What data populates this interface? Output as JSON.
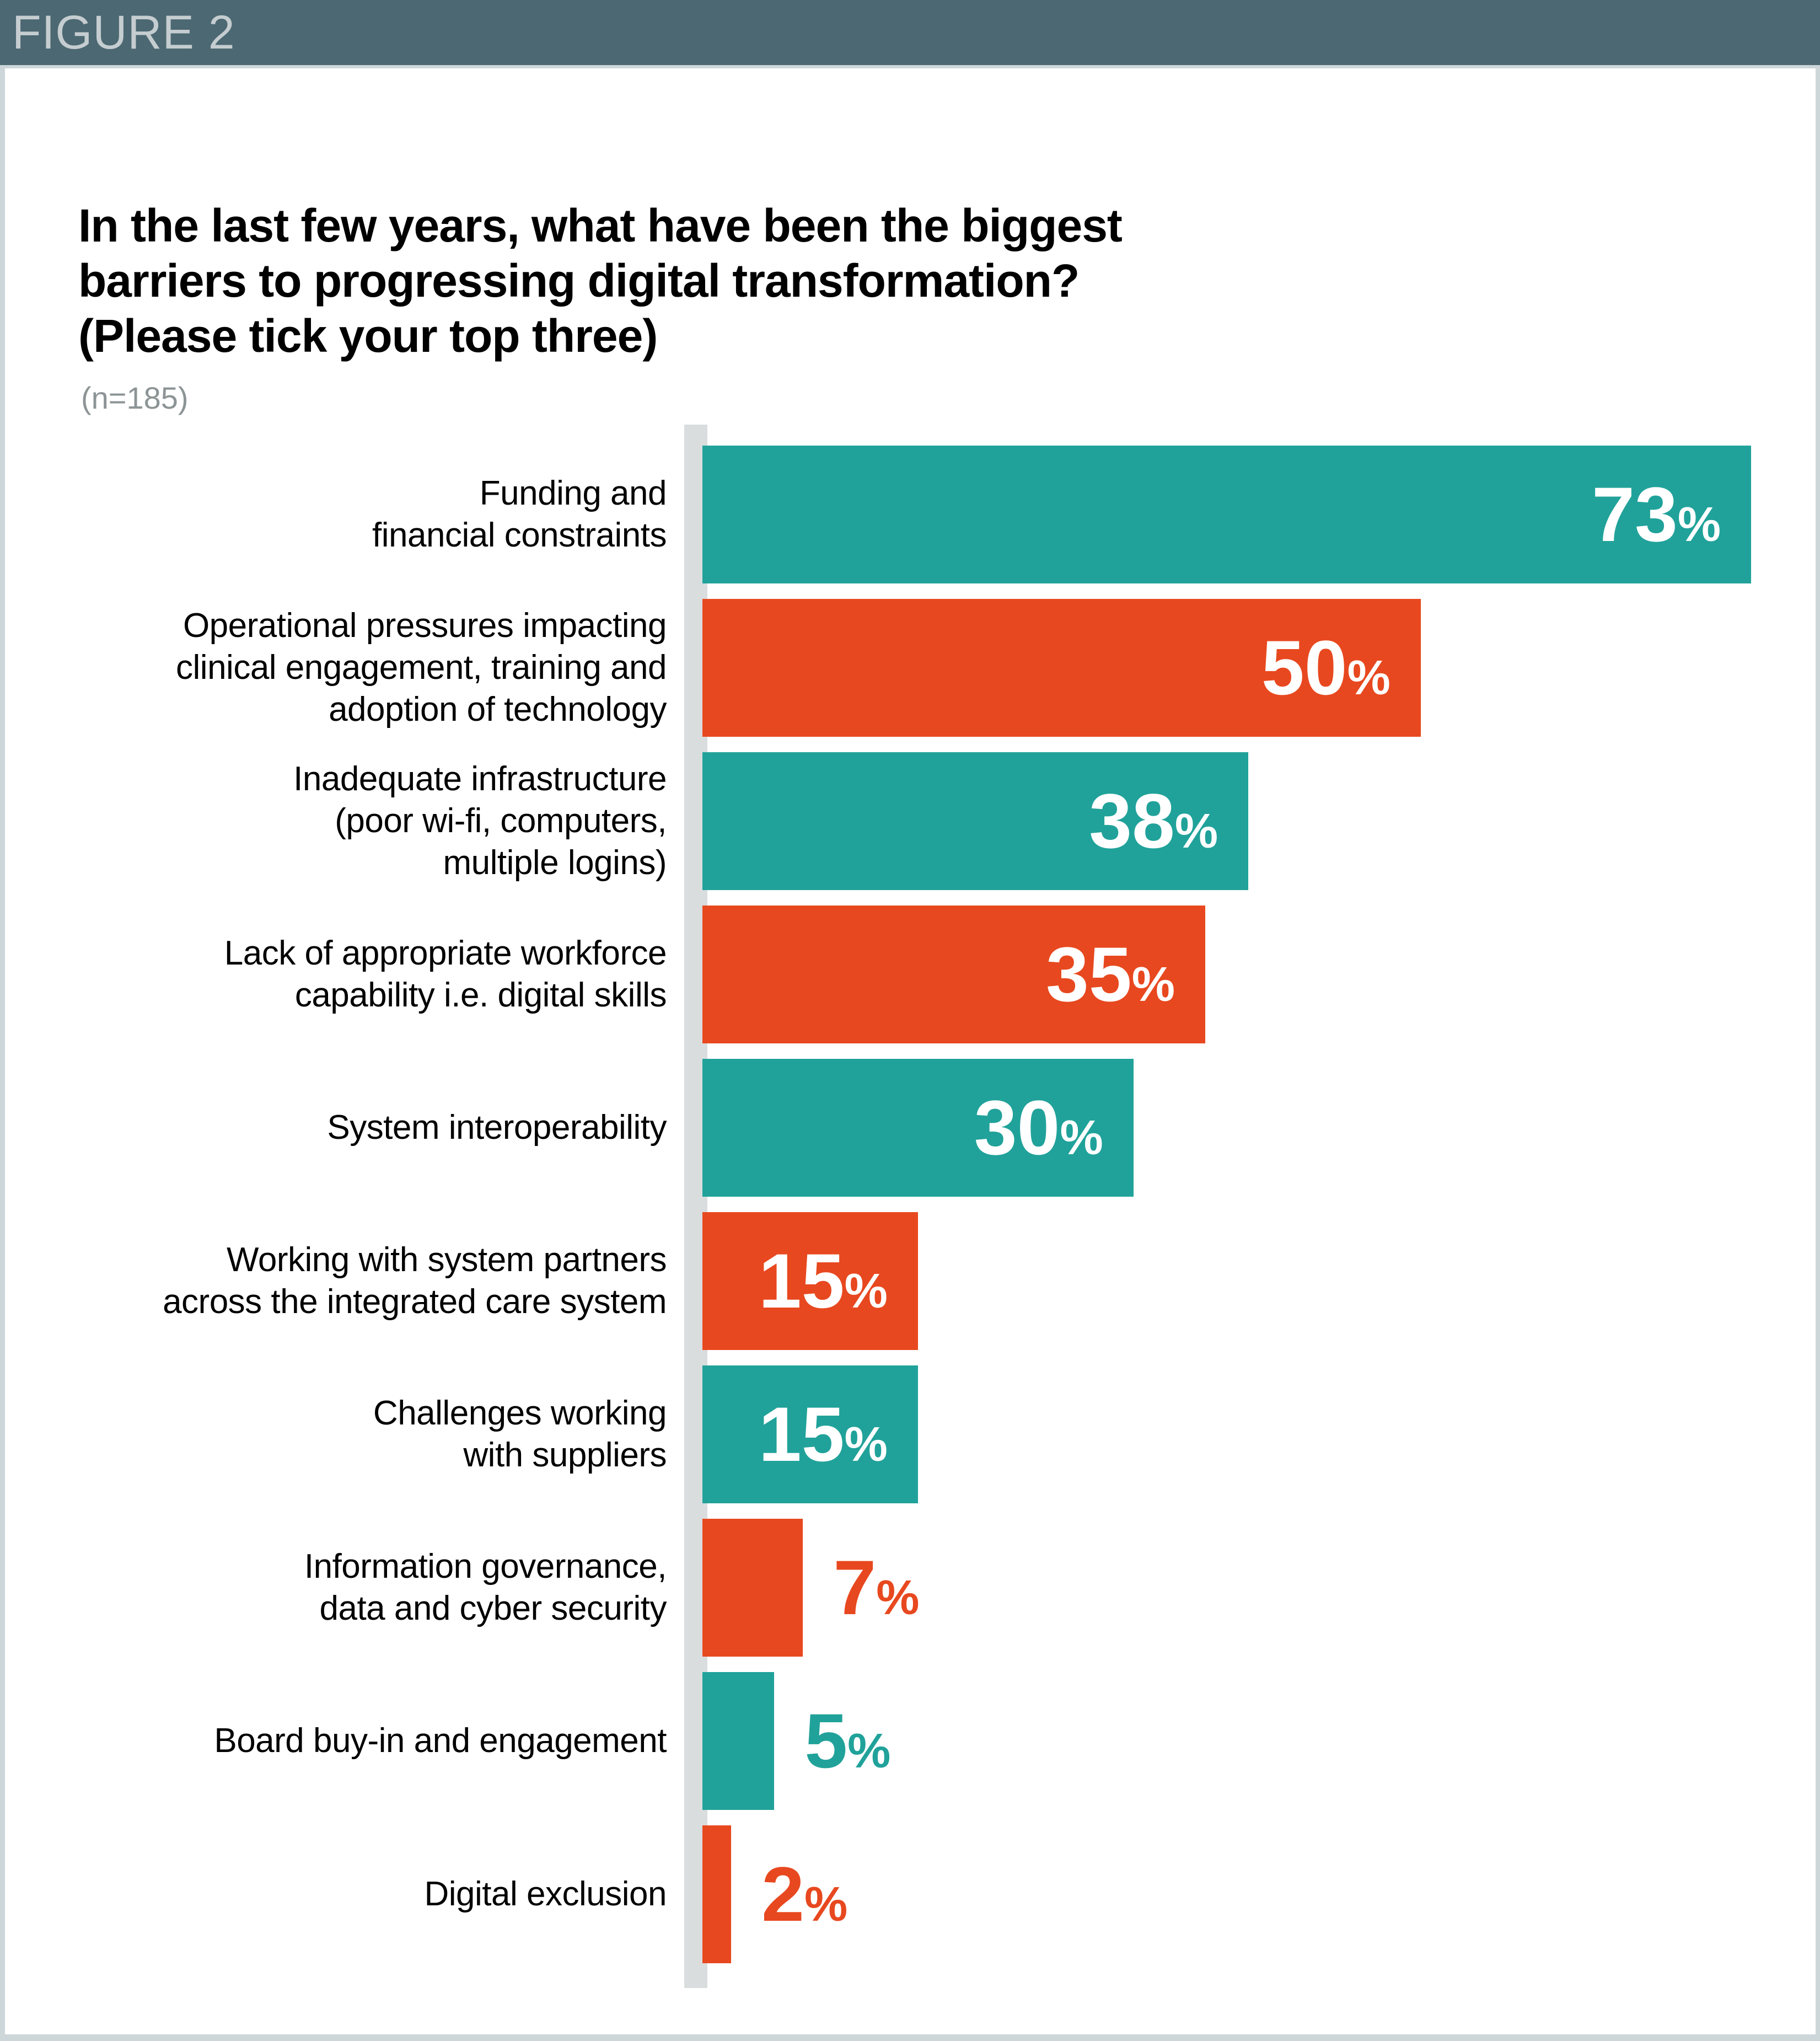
{
  "figure_label": "FIGURE 2",
  "chart": {
    "title_lines": [
      "In the last few years, what have been the biggest",
      "barriers to progressing digital transformation?",
      "(Please tick your top three)"
    ],
    "sample_label": "(n=185)"
  },
  "colors": {
    "header_bg": "#4C6872",
    "header_text": "#C5CDD0",
    "teal": "#20A29A",
    "orange": "#E8481F",
    "axis_band": "#D9DDDE",
    "card_bg": "#FFFFFF",
    "page_border": "#CDD6D9",
    "sample_text": "#8D9496"
  },
  "chart_data": {
    "type": "bar",
    "orientation": "horizontal",
    "title": "In the last few years, what have been the biggest barriers to progressing digital transformation? (Please tick your top three)",
    "sample_size": 185,
    "unit": "%",
    "xlim": [
      0,
      74.3
    ],
    "grid": false,
    "legend": false,
    "categories": [
      "Funding and financial constraints",
      "Operational pressures impacting clinical engagement, training and adoption of technology",
      "Inadequate infrastructure (poor wi-fi, computers, multiple logins)",
      "Lack of appropriate workforce capability i.e. digital skills",
      "System interoperability",
      "Working with system partners across the integrated care system",
      "Challenges working with suppliers",
      "Information governance, data and cyber security",
      "Board buy-in and engagement",
      "Digital exclusion"
    ],
    "values": [
      73,
      50,
      38,
      35,
      30,
      15,
      15,
      7,
      5,
      2
    ],
    "rows": [
      {
        "label_lines": [
          "Funding and",
          "financial constraints"
        ],
        "value": 73,
        "display": "73",
        "color": "teal",
        "value_placement": "inside"
      },
      {
        "label_lines": [
          "Operational pressures impacting",
          "clinical engagement, training and",
          "adoption of technology"
        ],
        "value": 50,
        "display": "50",
        "color": "orange",
        "value_placement": "inside"
      },
      {
        "label_lines": [
          "Inadequate infrastructure",
          "(poor wi-fi, computers,",
          "multiple logins)"
        ],
        "value": 38,
        "display": "38",
        "color": "teal",
        "value_placement": "inside"
      },
      {
        "label_lines": [
          "Lack of appropriate workforce",
          "capability i.e. digital skills"
        ],
        "value": 35,
        "display": "35",
        "color": "orange",
        "value_placement": "inside"
      },
      {
        "label_lines": [
          "System interoperability"
        ],
        "value": 30,
        "display": "30",
        "color": "teal",
        "value_placement": "inside"
      },
      {
        "label_lines": [
          "Working with system partners",
          "across the integrated care system"
        ],
        "value": 15,
        "display": "15",
        "color": "orange",
        "value_placement": "inside"
      },
      {
        "label_lines": [
          "Challenges working",
          "with suppliers"
        ],
        "value": 15,
        "display": "15",
        "color": "teal",
        "value_placement": "inside"
      },
      {
        "label_lines": [
          "Information governance,",
          "data and cyber security"
        ],
        "value": 7,
        "display": "7",
        "color": "orange",
        "value_placement": "outside"
      },
      {
        "label_lines": [
          "Board buy-in and engagement"
        ],
        "value": 5,
        "display": "5",
        "color": "teal",
        "value_placement": "outside"
      },
      {
        "label_lines": [
          "Digital exclusion"
        ],
        "value": 2,
        "display": "2",
        "color": "orange",
        "value_placement": "outside"
      }
    ],
    "percent_sign": "%"
  }
}
